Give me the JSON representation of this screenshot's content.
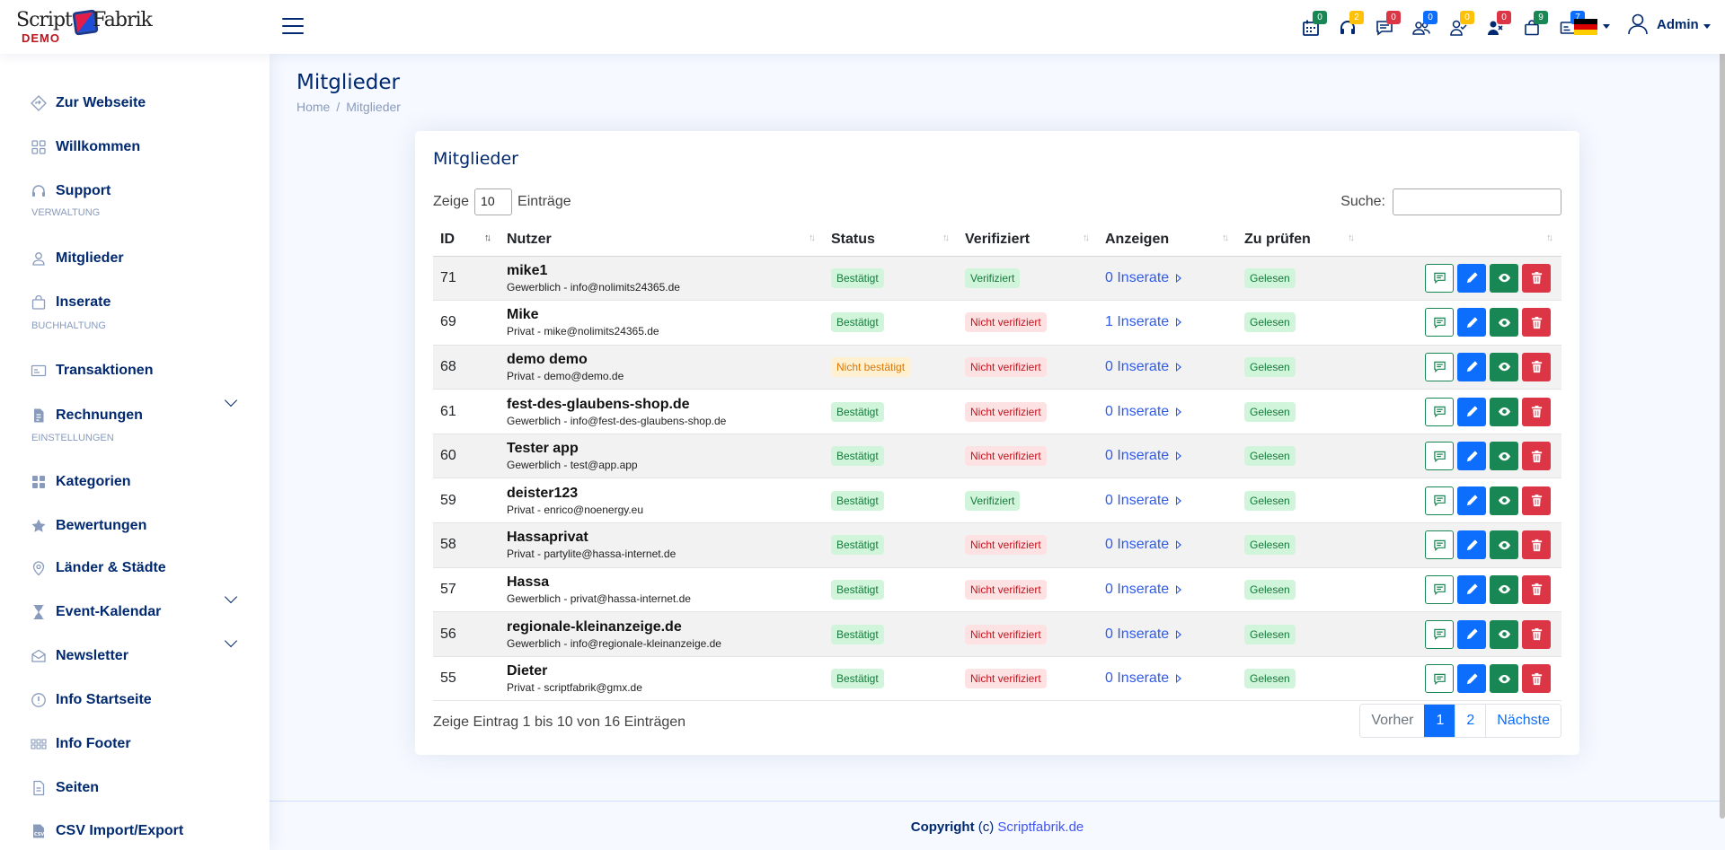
{
  "logo": {
    "word1": "Script",
    "word2": "Fabrik",
    "demo": "DEMO"
  },
  "header": {
    "icons": [
      {
        "name": "calendar-icon",
        "badge": "0",
        "color": "#198754"
      },
      {
        "name": "headset-icon",
        "badge": "2",
        "color": "#ffc107"
      },
      {
        "name": "chat-icon",
        "badge": "0",
        "color": "#dc3545"
      },
      {
        "name": "users-icon",
        "badge": "0",
        "color": "#0d6efd"
      },
      {
        "name": "user-check-icon",
        "badge": "0",
        "color": "#ffc107"
      },
      {
        "name": "user-x-icon",
        "badge": "0",
        "color": "#dc3545"
      },
      {
        "name": "bag-icon",
        "badge": "9",
        "color": "#198754"
      },
      {
        "name": "card-icon",
        "badge": "7",
        "color": "#0d6efd"
      }
    ],
    "user": "Admin"
  },
  "sidebar": {
    "items": [
      {
        "id": "website",
        "label": "Zur Webseite",
        "icon": "diamond-arrow-icon"
      },
      {
        "id": "welcome",
        "label": "Willkommen",
        "icon": "grid-icon"
      },
      {
        "id": "support",
        "label": "Support",
        "icon": "headset-icon"
      },
      {
        "id": "members",
        "label": "Mitglieder",
        "icon": "person-icon"
      },
      {
        "id": "ads",
        "label": "Inserate",
        "icon": "bag-icon"
      },
      {
        "id": "transactions",
        "label": "Transaktionen",
        "icon": "card-icon"
      },
      {
        "id": "invoices",
        "label": "Rechnungen",
        "icon": "file-icon"
      },
      {
        "id": "categories",
        "label": "Kategorien",
        "icon": "grid-fill-icon"
      },
      {
        "id": "ratings",
        "label": "Bewertungen",
        "icon": "star-icon"
      },
      {
        "id": "countries",
        "label": "Länder & Städte",
        "icon": "pin-icon"
      },
      {
        "id": "events",
        "label": "Event-Kalendar",
        "icon": "hourglass-icon"
      },
      {
        "id": "newsletter",
        "label": "Newsletter",
        "icon": "envelope-icon"
      },
      {
        "id": "info-start",
        "label": "Info Startseite",
        "icon": "info-icon"
      },
      {
        "id": "info-footer",
        "label": "Info Footer",
        "icon": "dots-icon"
      },
      {
        "id": "pages",
        "label": "Seiten",
        "icon": "doc-icon"
      },
      {
        "id": "csv",
        "label": "CSV Import/Export",
        "icon": "csv-icon"
      }
    ],
    "headings": {
      "admin": "VERWALTUNG",
      "accounting": "BUCHHALTUNG",
      "settings": "EINSTELLUNGEN"
    }
  },
  "page": {
    "title": "Mitglieder",
    "crumb_home": "Home",
    "crumb_current": "Mitglieder"
  },
  "card": {
    "title": "Mitglieder",
    "show_label": "Zeige",
    "show_value": "10",
    "entries_label": "Einträge",
    "search_label": "Suche:"
  },
  "table": {
    "headers": [
      "ID",
      "Nutzer",
      "Status",
      "Verifiziert",
      "Anzeigen",
      "Zu prüfen"
    ],
    "rows": [
      {
        "id": "71",
        "name": "mike1",
        "sub": "Gewerblich - info@nolimits24365.de",
        "status": "Bestätigt",
        "status_type": "ok",
        "verified": "Verifiziert",
        "verified_type": "ok",
        "ads": "0 Inserate",
        "check": "Gelesen"
      },
      {
        "id": "69",
        "name": "Mike",
        "sub": "Privat - mike@nolimits24365.de",
        "status": "Bestätigt",
        "status_type": "ok",
        "verified": "Nicht verifiziert",
        "verified_type": "bad",
        "ads": "1 Inserate",
        "check": "Gelesen"
      },
      {
        "id": "68",
        "name": "demo demo",
        "sub": "Privat - demo@demo.de",
        "status": "Nicht bestätigt",
        "status_type": "warn",
        "verified": "Nicht verifiziert",
        "verified_type": "bad",
        "ads": "0 Inserate",
        "check": "Gelesen"
      },
      {
        "id": "61",
        "name": "fest-des-glaubens-shop.de",
        "sub": "Gewerblich - info@fest-des-glaubens-shop.de",
        "status": "Bestätigt",
        "status_type": "ok",
        "verified": "Nicht verifiziert",
        "verified_type": "bad",
        "ads": "0 Inserate",
        "check": "Gelesen"
      },
      {
        "id": "60",
        "name": "Tester app",
        "sub": "Gewerblich - test@app.app",
        "status": "Bestätigt",
        "status_type": "ok",
        "verified": "Nicht verifiziert",
        "verified_type": "bad",
        "ads": "0 Inserate",
        "check": "Gelesen"
      },
      {
        "id": "59",
        "name": "deister123",
        "sub": "Privat - enrico@noenergy.eu",
        "status": "Bestätigt",
        "status_type": "ok",
        "verified": "Verifiziert",
        "verified_type": "ok",
        "ads": "0 Inserate",
        "check": "Gelesen"
      },
      {
        "id": "58",
        "name": "Hassaprivat",
        "sub": "Privat - partylite@hassa-internet.de",
        "status": "Bestätigt",
        "status_type": "ok",
        "verified": "Nicht verifiziert",
        "verified_type": "bad",
        "ads": "0 Inserate",
        "check": "Gelesen"
      },
      {
        "id": "57",
        "name": "Hassa",
        "sub": "Gewerblich - privat@hassa-internet.de",
        "status": "Bestätigt",
        "status_type": "ok",
        "verified": "Nicht verifiziert",
        "verified_type": "bad",
        "ads": "0 Inserate",
        "check": "Gelesen"
      },
      {
        "id": "56",
        "name": "regionale-kleinanzeige.de",
        "sub": "Gewerblich - info@regionale-kleinanzeige.de",
        "status": "Bestätigt",
        "status_type": "ok",
        "verified": "Nicht verifiziert",
        "verified_type": "bad",
        "ads": "0 Inserate",
        "check": "Gelesen"
      },
      {
        "id": "55",
        "name": "Dieter",
        "sub": "Privat - scriptfabrik@gmx.de",
        "status": "Bestätigt",
        "status_type": "ok",
        "verified": "Nicht verifiziert",
        "verified_type": "bad",
        "ads": "0 Inserate",
        "check": "Gelesen"
      }
    ]
  },
  "footer_info": "Zeige Eintrag 1 bis 10 von 16 Einträgen",
  "pagination": {
    "prev": "Vorher",
    "pages": [
      "1",
      "2"
    ],
    "next": "Nächste"
  },
  "footer": {
    "bold": "Copyright",
    "mid": " (c) ",
    "link": "Scriptfabrik.de"
  }
}
